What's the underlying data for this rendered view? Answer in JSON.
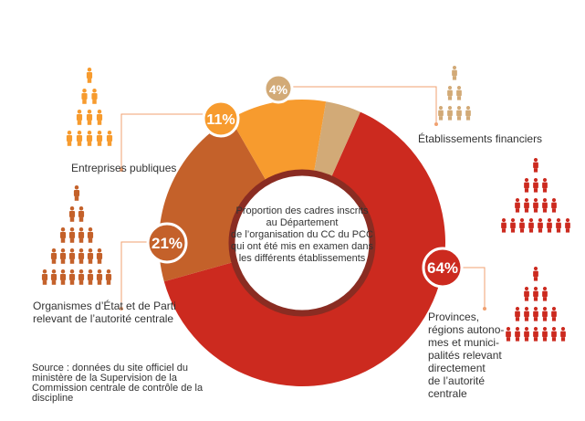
{
  "chart_data": {
    "type": "pie",
    "title": "Proportion des cadres inscrits au Département de l’organisation du CC du PCC qui ont été mis en examen dans les différents établissements",
    "slices": [
      {
        "label": "Provinces, régions autonomes et municipalités relevant directement de l’autorité centrale",
        "value": 64,
        "color": "#cc2a1f"
      },
      {
        "label": "Organismes d’État et de Parti relevant de l’autorité centrale",
        "value": 21,
        "color": "#c4612a"
      },
      {
        "label": "Entreprises publiques",
        "value": 11,
        "color": "#f79b2e"
      },
      {
        "label": "Établissements financiers",
        "value": 4,
        "color": "#d2aa77"
      }
    ],
    "percent_labels": [
      "64%",
      "21%",
      "11%",
      "4%"
    ]
  },
  "labels": {
    "provinces": [
      "Provinces,",
      "régions autono-",
      "mes et munici-",
      "palités relevant",
      "directement",
      "de l’autorité",
      "centrale"
    ],
    "organismes": [
      "Organismes d’État et de Parti",
      "relevant de l’autorité centrale"
    ],
    "entreprises": "Entreprises publiques",
    "financiers": "Établissements financiers"
  },
  "center_text": [
    "Proportion des cadres inscrits",
    "au Département",
    "de l’organisation du CC du PCC",
    "qui ont été mis en examen dans",
    "les différents établissements"
  ],
  "source": [
    "Source : données du site officiel du",
    "ministère de la Supervision de la",
    "Commission centrale de contrôle de la",
    "discipline"
  ],
  "colors": {
    "provinces": "#cc2a1f",
    "organismes": "#c4612a",
    "entreprises": "#f79b2e",
    "financiers": "#d2aa77",
    "inner_ring": "#8a2c22",
    "connector": "#f0a070"
  },
  "icons": [
    "person-pyramid-icon"
  ]
}
